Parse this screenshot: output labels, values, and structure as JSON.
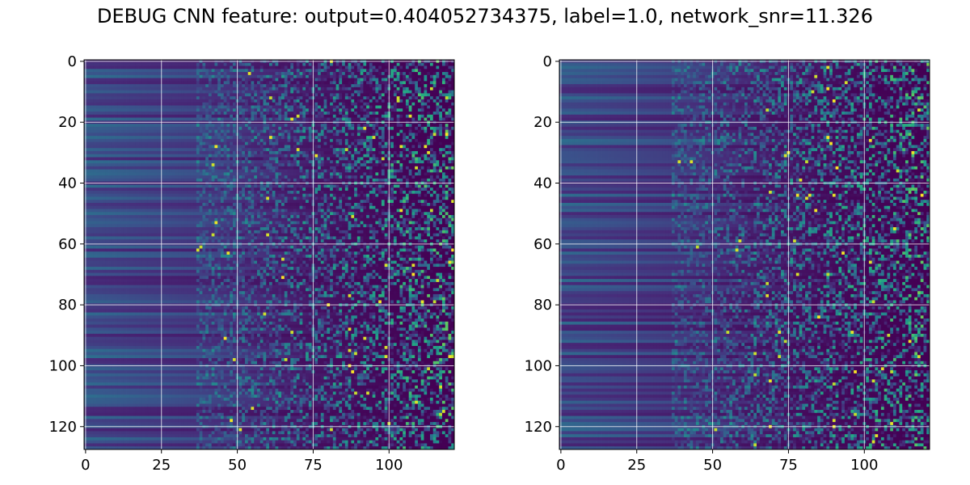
{
  "figure": {
    "suptitle": "DEBUG CNN feature: output=0.404052734375, label=1.0, network_snr=11.326"
  },
  "colors": {
    "colormap": "viridis",
    "grid": "#ffffff",
    "background": "#ffffff"
  },
  "chart_data": [
    {
      "type": "heatmap",
      "panel": "left",
      "title": "",
      "xlabel": "",
      "ylabel": "",
      "rows": 128,
      "cols": 122,
      "xlim": [
        -0.5,
        121.5
      ],
      "ylim": [
        127.5,
        -0.5
      ],
      "y_inverted": true,
      "grid": true,
      "x_ticks": [
        0,
        25,
        50,
        75,
        100
      ],
      "y_ticks": [
        0,
        20,
        40,
        60,
        80,
        100,
        120
      ],
      "value_range": [
        0,
        1
      ],
      "pattern": "rows of low values for columns 0-45, increasingly noisy higher values toward columns 75-121"
    },
    {
      "type": "heatmap",
      "panel": "right",
      "title": "",
      "xlabel": "",
      "ylabel": "",
      "rows": 128,
      "cols": 122,
      "xlim": [
        -0.5,
        121.5
      ],
      "ylim": [
        127.5,
        -0.5
      ],
      "y_inverted": true,
      "grid": true,
      "x_ticks": [
        0,
        25,
        50,
        75,
        100
      ],
      "y_ticks": [
        0,
        20,
        40,
        60,
        80,
        100,
        120
      ],
      "value_range": [
        0,
        1
      ],
      "pattern": "rows of low values for columns 0-45, increasingly noisy higher values toward columns 75-121"
    }
  ]
}
